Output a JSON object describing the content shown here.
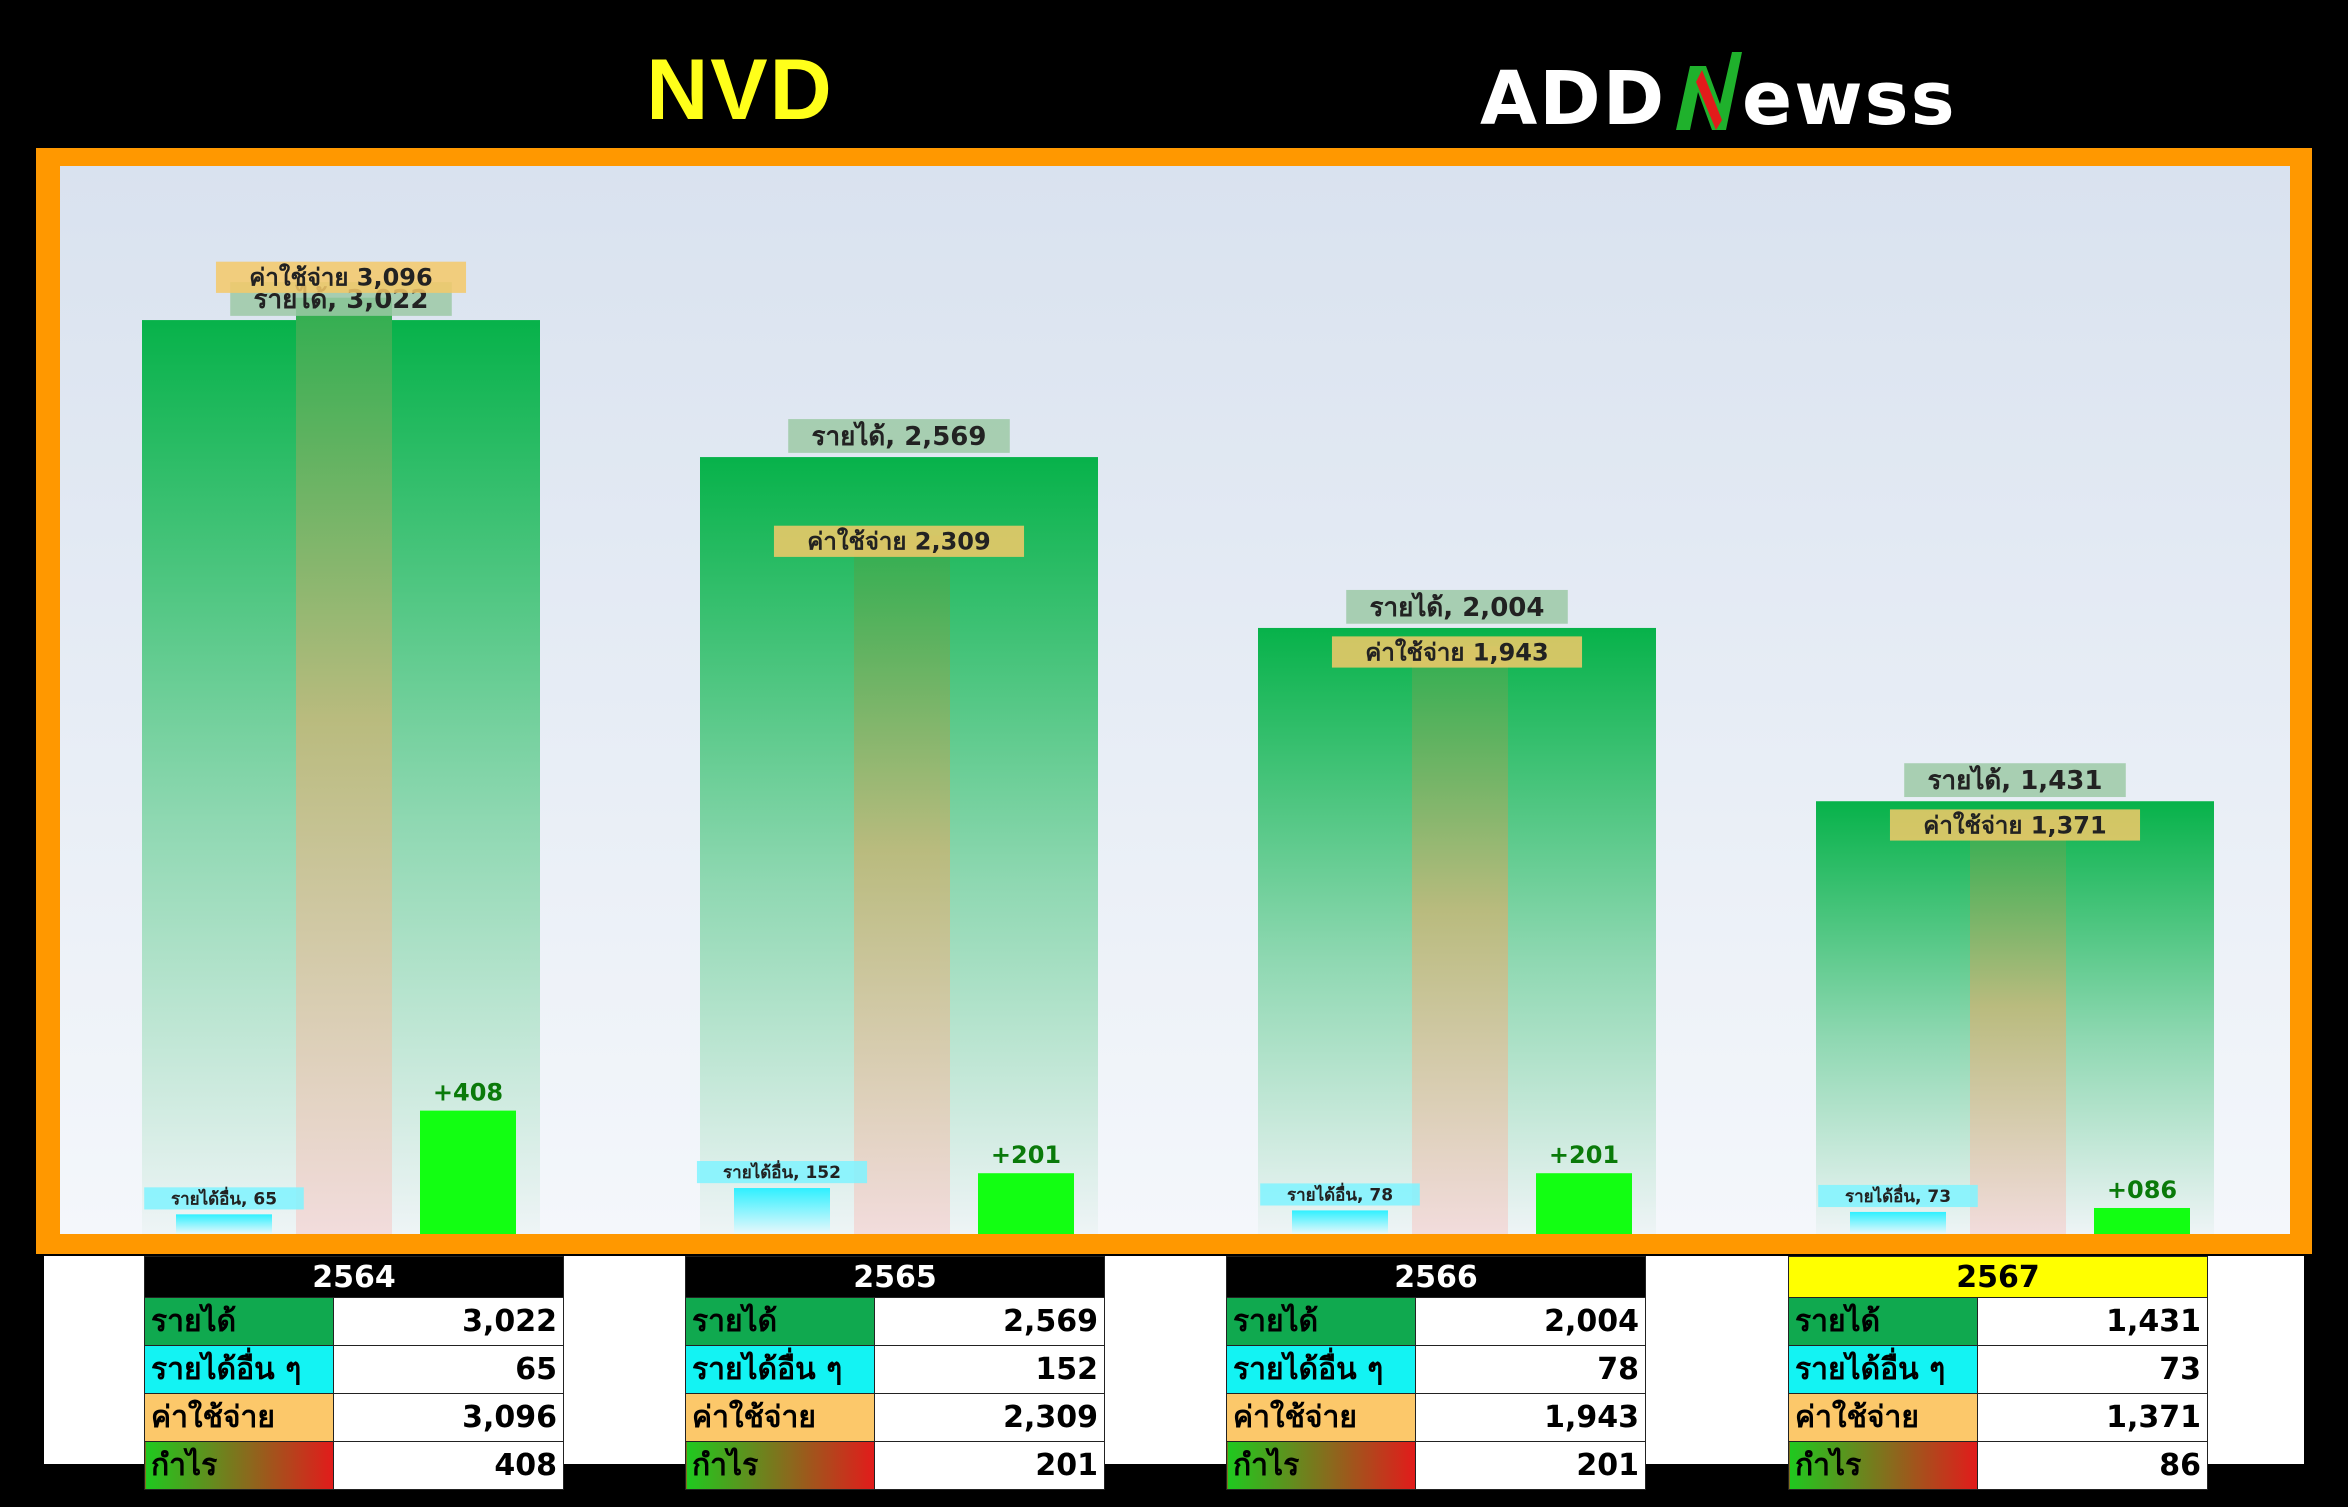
{
  "header": {
    "ticker": "NVD",
    "brand": "ADDNewss"
  },
  "colors": {
    "revenue": "#07b24a",
    "other_income": "#3ff0ff",
    "expense": "#f5bf5a",
    "profit": "#12ff12",
    "frame": "#ff9800",
    "highlight": "#ffff00"
  },
  "chart_data": {
    "type": "bar",
    "categories": [
      "2564",
      "2565",
      "2566",
      "2567"
    ],
    "series": [
      {
        "name": "รายได้",
        "values": [
          3022,
          2569,
          2004,
          1431
        ]
      },
      {
        "name": "รายได้อื่น",
        "values": [
          65,
          152,
          78,
          73
        ]
      },
      {
        "name": "ค่าใช้จ่าย",
        "values": [
          3096,
          2309,
          1943,
          1371
        ]
      },
      {
        "name": "กำไร",
        "values": [
          408,
          201,
          201,
          86
        ]
      }
    ],
    "data_labels": {
      "revenue": [
        "รายได้, 3,022",
        "รายได้, 2,569",
        "รายได้, 2,004",
        "รายได้, 1,431"
      ],
      "other_income": [
        "รายได้อื่น, 65",
        "รายได้อื่น, 152",
        "รายได้อื่น, 78",
        "รายได้อื่น, 73"
      ],
      "expense": [
        "ค่าใช้จ่าย 3,096",
        "ค่าใช้จ่าย 2,309",
        "ค่าใช้จ่าย 1,943",
        "ค่าใช้จ่าย 1,371"
      ],
      "profit": [
        "+408",
        "+201",
        "+201",
        "+086"
      ]
    },
    "ylim": [
      0,
      3300
    ],
    "grid": false,
    "legend": "none"
  },
  "tables": [
    {
      "year": "2564",
      "highlight": false,
      "rows": [
        {
          "label": "รายได้",
          "value": "3,022"
        },
        {
          "label": "รายได้อื่น ๆ",
          "value": "65"
        },
        {
          "label": "ค่าใช้จ่าย",
          "value": "3,096"
        },
        {
          "label": "กำไร",
          "value": "408"
        }
      ]
    },
    {
      "year": "2565",
      "highlight": false,
      "rows": [
        {
          "label": "รายได้",
          "value": "2,569"
        },
        {
          "label": "รายได้อื่น ๆ",
          "value": "152"
        },
        {
          "label": "ค่าใช้จ่าย",
          "value": "2,309"
        },
        {
          "label": "กำไร",
          "value": "201"
        }
      ]
    },
    {
      "year": "2566",
      "highlight": false,
      "rows": [
        {
          "label": "รายได้",
          "value": "2,004"
        },
        {
          "label": "รายได้อื่น ๆ",
          "value": "78"
        },
        {
          "label": "ค่าใช้จ่าย",
          "value": "1,943"
        },
        {
          "label": "กำไร",
          "value": "201"
        }
      ]
    },
    {
      "year": "2567",
      "highlight": true,
      "rows": [
        {
          "label": "รายได้",
          "value": "1,431"
        },
        {
          "label": "รายได้อื่น ๆ",
          "value": "73"
        },
        {
          "label": "ค่าใช้จ่าย",
          "value": "1,371"
        },
        {
          "label": "กำไร",
          "value": "86"
        }
      ]
    }
  ]
}
